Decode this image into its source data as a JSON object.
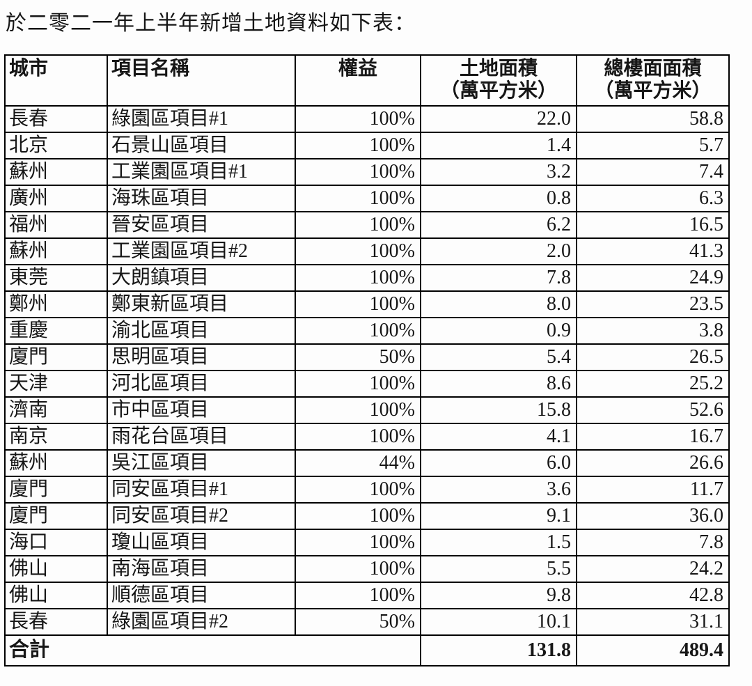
{
  "title": "於二零二一年上半年新增土地資料如下表：",
  "table": {
    "headers": {
      "city": "城市",
      "project": "項目名稱",
      "interest": "權益",
      "land_area_line1": "土地面積",
      "land_area_line2": "（萬平方米）",
      "gfa_line1": "總樓面面積",
      "gfa_line2": "（萬平方米）"
    },
    "rows": [
      {
        "city": "長春",
        "project": "綠園區項目#1",
        "interest": "100%",
        "land_area": "22.0",
        "gfa": "58.8"
      },
      {
        "city": "北京",
        "project": "石景山區項目",
        "interest": "100%",
        "land_area": "1.4",
        "gfa": "5.7"
      },
      {
        "city": "蘇州",
        "project": "工業園區項目#1",
        "interest": "100%",
        "land_area": "3.2",
        "gfa": "7.4"
      },
      {
        "city": "廣州",
        "project": "海珠區項目",
        "interest": "100%",
        "land_area": "0.8",
        "gfa": "6.3"
      },
      {
        "city": "福州",
        "project": "晉安區項目",
        "interest": "100%",
        "land_area": "6.2",
        "gfa": "16.5"
      },
      {
        "city": "蘇州",
        "project": "工業園區項目#2",
        "interest": "100%",
        "land_area": "2.0",
        "gfa": "41.3"
      },
      {
        "city": "東莞",
        "project": "大朗鎮項目",
        "interest": "100%",
        "land_area": "7.8",
        "gfa": "24.9"
      },
      {
        "city": "鄭州",
        "project": "鄭東新區項目",
        "interest": "100%",
        "land_area": "8.0",
        "gfa": "23.5"
      },
      {
        "city": "重慶",
        "project": "渝北區項目",
        "interest": "100%",
        "land_area": "0.9",
        "gfa": "3.8"
      },
      {
        "city": "廈門",
        "project": "思明區項目",
        "interest": "50%",
        "land_area": "5.4",
        "gfa": "26.5"
      },
      {
        "city": "天津",
        "project": "河北區項目",
        "interest": "100%",
        "land_area": "8.6",
        "gfa": "25.2"
      },
      {
        "city": "濟南",
        "project": "市中區項目",
        "interest": "100%",
        "land_area": "15.8",
        "gfa": "52.6"
      },
      {
        "city": "南京",
        "project": "雨花台區項目",
        "interest": "100%",
        "land_area": "4.1",
        "gfa": "16.7"
      },
      {
        "city": "蘇州",
        "project": "吳江區項目",
        "interest": "44%",
        "land_area": "6.0",
        "gfa": "26.6"
      },
      {
        "city": "廈門",
        "project": "同安區項目#1",
        "interest": "100%",
        "land_area": "3.6",
        "gfa": "11.7"
      },
      {
        "city": "廈門",
        "project": "同安區項目#2",
        "interest": "100%",
        "land_area": "9.1",
        "gfa": "36.0"
      },
      {
        "city": "海口",
        "project": "瓊山區項目",
        "interest": "100%",
        "land_area": "1.5",
        "gfa": "7.8"
      },
      {
        "city": "佛山",
        "project": "南海區項目",
        "interest": "100%",
        "land_area": "5.5",
        "gfa": "24.2"
      },
      {
        "city": "佛山",
        "project": "順德區項目",
        "interest": "100%",
        "land_area": "9.8",
        "gfa": "42.8"
      },
      {
        "city": "長春",
        "project": "綠園區項目#2",
        "interest": "50%",
        "land_area": "10.1",
        "gfa": "31.1"
      }
    ],
    "total": {
      "label": "合計",
      "land_area": "131.8",
      "gfa": "489.4"
    }
  }
}
